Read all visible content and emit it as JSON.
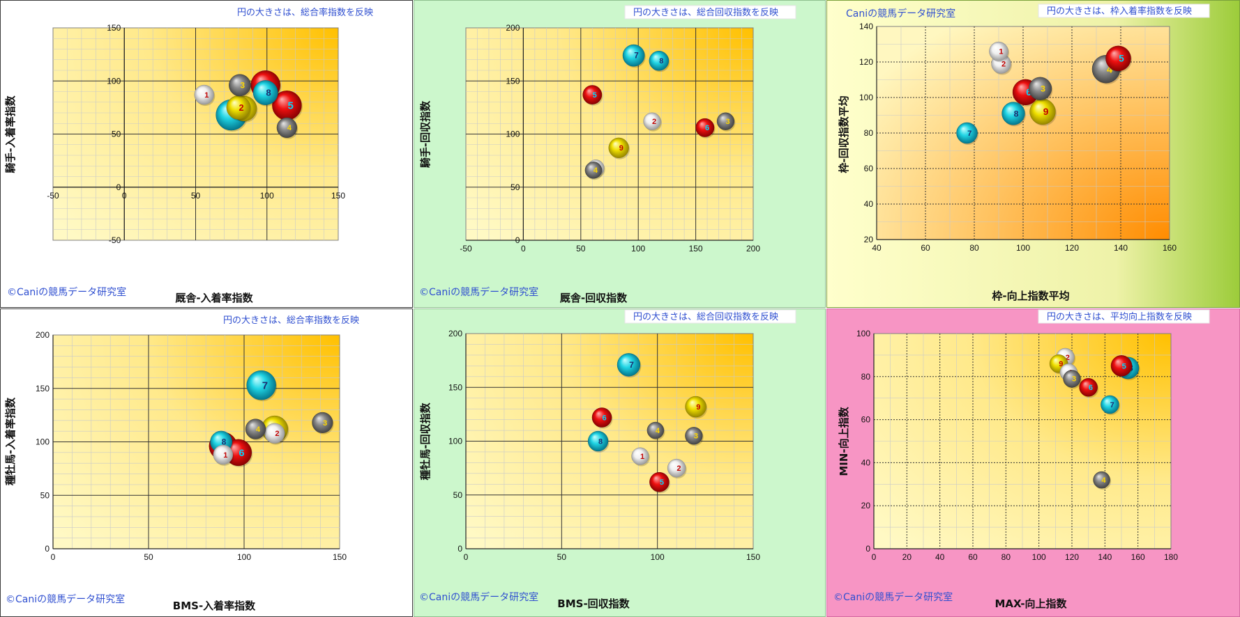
{
  "chart_data": [
    {
      "type": "scatter",
      "title": "円の大きさは、総合率指数を反映",
      "copyright": "©Caniの競馬データ研究室",
      "xlabel": "厩舎-入着率指数",
      "ylabel": "騎手-入着率指数",
      "xlim": [
        -50,
        150
      ],
      "ylim": [
        -50,
        150
      ],
      "xticks": [
        -50,
        0,
        50,
        100,
        150
      ],
      "yticks": [
        -50,
        0,
        50,
        100,
        150
      ],
      "grid": "on",
      "points": [
        {
          "label": "1",
          "x": 56,
          "y": 87,
          "size": 70,
          "color": "white"
        },
        {
          "label": "2",
          "x": 80,
          "y": 75,
          "size": 85,
          "color": "yellow"
        },
        {
          "label": "3",
          "x": 81,
          "y": 96,
          "size": 78,
          "color": "gray"
        },
        {
          "label": "4",
          "x": 114,
          "y": 56,
          "size": 72,
          "color": "gray"
        },
        {
          "label": "5",
          "x": 114,
          "y": 77,
          "size": 105,
          "color": "red"
        },
        {
          "label": "6",
          "x": 99,
          "y": 96,
          "size": 105,
          "color": "red"
        },
        {
          "label": "7",
          "x": 75,
          "y": 68,
          "size": 110,
          "color": "cyan"
        },
        {
          "label": "8",
          "x": 99,
          "y": 89,
          "size": 88,
          "color": "cyan"
        },
        {
          "label": "9",
          "x": 84,
          "y": 74,
          "size": 90,
          "color": "yellow"
        }
      ]
    },
    {
      "type": "scatter",
      "title": "円の大きさは、総合回収指数を反映",
      "copyright": "©Caniの競馬データ研究室",
      "xlabel": "厩舎-回収指数",
      "ylabel": "騎手-回収指数",
      "xlim": [
        -50,
        200
      ],
      "ylim": [
        0,
        200
      ],
      "xticks": [
        -50,
        0,
        50,
        100,
        150,
        200
      ],
      "yticks": [
        0,
        50,
        100,
        150,
        200
      ],
      "grid": "on",
      "points": [
        {
          "label": "1",
          "x": 63,
          "y": 68,
          "size": 60,
          "color": "white"
        },
        {
          "label": "2",
          "x": 112,
          "y": 112,
          "size": 62,
          "color": "white"
        },
        {
          "label": "3",
          "x": 176,
          "y": 112,
          "size": 62,
          "color": "gray"
        },
        {
          "label": "4",
          "x": 61,
          "y": 66,
          "size": 60,
          "color": "gray"
        },
        {
          "label": "5",
          "x": 60,
          "y": 137,
          "size": 68,
          "color": "red"
        },
        {
          "label": "6",
          "x": 158,
          "y": 106,
          "size": 66,
          "color": "red"
        },
        {
          "label": "7",
          "x": 96,
          "y": 174,
          "size": 78,
          "color": "cyan"
        },
        {
          "label": "8",
          "x": 118,
          "y": 169,
          "size": 70,
          "color": "cyan"
        },
        {
          "label": "9",
          "x": 83,
          "y": 87,
          "size": 72,
          "color": "yellow"
        }
      ]
    },
    {
      "type": "scatter",
      "title": "円の大きさは、枠入着率指数を反映",
      "copyright": "Caniの競馬データ研究室",
      "xlabel": "枠-向上指数平均",
      "ylabel": "枠-回収指数平均",
      "xlim": [
        40,
        160
      ],
      "ylim": [
        20,
        140
      ],
      "xticks": [
        40,
        60,
        80,
        100,
        120,
        140,
        160
      ],
      "yticks": [
        20,
        40,
        60,
        80,
        100,
        120,
        140
      ],
      "grid": "on",
      "points": [
        {
          "label": "1",
          "x": 90,
          "y": 126,
          "size": 68,
          "color": "white"
        },
        {
          "label": "2",
          "x": 91,
          "y": 119,
          "size": 70,
          "color": "white"
        },
        {
          "label": "3",
          "x": 107,
          "y": 105,
          "size": 82,
          "color": "gray"
        },
        {
          "label": "4",
          "x": 134,
          "y": 116,
          "size": 100,
          "color": "gray"
        },
        {
          "label": "5",
          "x": 139,
          "y": 122,
          "size": 90,
          "color": "red"
        },
        {
          "label": "6",
          "x": 101,
          "y": 103,
          "size": 92,
          "color": "red"
        },
        {
          "label": "7",
          "x": 77,
          "y": 80,
          "size": 75,
          "color": "cyan"
        },
        {
          "label": "8",
          "x": 96,
          "y": 91,
          "size": 82,
          "color": "cyan"
        },
        {
          "label": "9",
          "x": 108,
          "y": 92,
          "size": 92,
          "color": "yellow"
        }
      ]
    },
    {
      "type": "scatter",
      "title": "円の大きさは、総合率指数を反映",
      "copyright": "©Caniの競馬データ研究室",
      "xlabel": "BMS-入着率指数",
      "ylabel": "種牡馬-入着率指数",
      "xlim": [
        0,
        150
      ],
      "ylim": [
        0,
        200
      ],
      "xticks": [
        0,
        50,
        100,
        150
      ],
      "yticks": [
        0,
        50,
        100,
        150,
        200
      ],
      "grid": "on",
      "points": [
        {
          "label": "1",
          "x": 89,
          "y": 88,
          "size": 70,
          "color": "white"
        },
        {
          "label": "2",
          "x": 116,
          "y": 108,
          "size": 72,
          "color": "white"
        },
        {
          "label": "3",
          "x": 141,
          "y": 118,
          "size": 74,
          "color": "gray"
        },
        {
          "label": "4",
          "x": 106,
          "y": 112,
          "size": 72,
          "color": "gray"
        },
        {
          "label": "5",
          "x": 89,
          "y": 96,
          "size": 100,
          "color": "red"
        },
        {
          "label": "6",
          "x": 97,
          "y": 90,
          "size": 95,
          "color": "red"
        },
        {
          "label": "7",
          "x": 109,
          "y": 153,
          "size": 105,
          "color": "cyan"
        },
        {
          "label": "8",
          "x": 88,
          "y": 100,
          "size": 78,
          "color": "cyan"
        },
        {
          "label": "9",
          "x": 116,
          "y": 112,
          "size": 95,
          "color": "yellow"
        }
      ]
    },
    {
      "type": "scatter",
      "title": "円の大きさは、総合回収指数を反映",
      "copyright": "©Caniの競馬データ研究室",
      "xlabel": "BMS-回収指数",
      "ylabel": "種牡馬-回収指数",
      "xlim": [
        0,
        150
      ],
      "ylim": [
        0,
        200
      ],
      "xticks": [
        0,
        50,
        100,
        150
      ],
      "yticks": [
        0,
        50,
        100,
        150,
        200
      ],
      "grid": "on",
      "points": [
        {
          "label": "1",
          "x": 91,
          "y": 86,
          "size": 62,
          "color": "white"
        },
        {
          "label": "2",
          "x": 110,
          "y": 75,
          "size": 65,
          "color": "white"
        },
        {
          "label": "3",
          "x": 119,
          "y": 105,
          "size": 62,
          "color": "gray"
        },
        {
          "label": "4",
          "x": 99,
          "y": 110,
          "size": 60,
          "color": "gray"
        },
        {
          "label": "5",
          "x": 101,
          "y": 62,
          "size": 70,
          "color": "red"
        },
        {
          "label": "6",
          "x": 71,
          "y": 122,
          "size": 70,
          "color": "red"
        },
        {
          "label": "7",
          "x": 85,
          "y": 171,
          "size": 82,
          "color": "cyan"
        },
        {
          "label": "8",
          "x": 69,
          "y": 100,
          "size": 72,
          "color": "cyan"
        },
        {
          "label": "9",
          "x": 120,
          "y": 132,
          "size": 75,
          "color": "yellow"
        }
      ]
    },
    {
      "type": "scatter",
      "title": "円の大きさは、平均向上指数を反映",
      "copyright": "©Caniの競馬データ研究室",
      "xlabel": "MAX-向上指数",
      "ylabel": "MIN-向上指数",
      "xlim": [
        0,
        180
      ],
      "ylim": [
        0,
        100
      ],
      "xticks": [
        0,
        20,
        40,
        60,
        80,
        100,
        120,
        140,
        160,
        180
      ],
      "yticks": [
        0,
        20,
        40,
        60,
        80,
        100
      ],
      "grid": "on",
      "points": [
        {
          "label": "1",
          "x": 118,
          "y": 82,
          "size": 62,
          "color": "white"
        },
        {
          "label": "2",
          "x": 116,
          "y": 89,
          "size": 65,
          "color": "white"
        },
        {
          "label": "3",
          "x": 120,
          "y": 79,
          "size": 62,
          "color": "gray"
        },
        {
          "label": "4",
          "x": 138,
          "y": 32,
          "size": 60,
          "color": "gray"
        },
        {
          "label": "5",
          "x": 150,
          "y": 85,
          "size": 75,
          "color": "red"
        },
        {
          "label": "6",
          "x": 130,
          "y": 75,
          "size": 65,
          "color": "red"
        },
        {
          "label": "7",
          "x": 143,
          "y": 67,
          "size": 65,
          "color": "cyan"
        },
        {
          "label": "8",
          "x": 154,
          "y": 84,
          "size": 78,
          "color": "cyan"
        },
        {
          "label": "9",
          "x": 112,
          "y": 86,
          "size": 65,
          "color": "yellow"
        }
      ]
    }
  ]
}
